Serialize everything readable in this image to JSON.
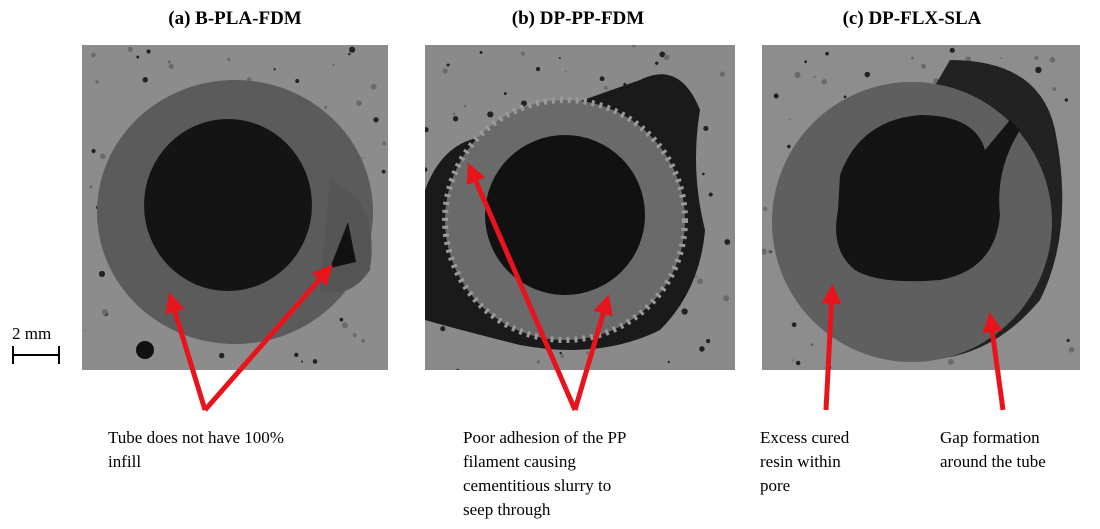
{
  "scale_bar": "2 mm",
  "panels": [
    {
      "title": "(a) B-PLA-FDM",
      "annotations": [
        {
          "lines": [
            "Tube does not have 100%",
            "infill"
          ]
        }
      ]
    },
    {
      "title": "(b) DP-PP-FDM",
      "annotations": [
        {
          "lines": [
            "Poor adhesion of the PP",
            "filament causing",
            "cementitious slurry to",
            "seep through"
          ]
        }
      ]
    },
    {
      "title": "(c) DP-FLX-SLA",
      "annotations": [
        {
          "lines": [
            "Excess cured",
            "resin within",
            "pore"
          ]
        },
        {
          "lines": [
            "Gap formation",
            "around the tube"
          ]
        }
      ]
    }
  ]
}
